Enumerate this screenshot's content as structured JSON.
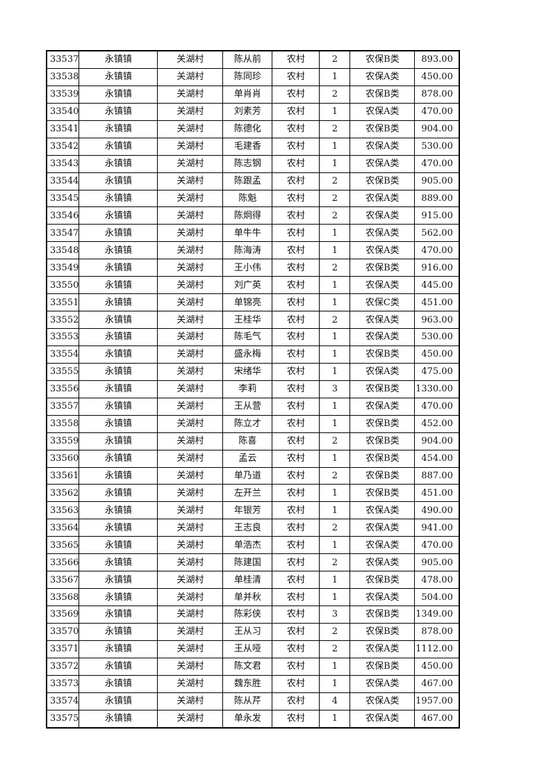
{
  "table": {
    "rows": [
      [
        "33537",
        "永镇镇",
        "关湖村",
        "陈从前",
        "农村",
        "2",
        "农保B类",
        "893.00"
      ],
      [
        "33538",
        "永镇镇",
        "关湖村",
        "陈同珍",
        "农村",
        "1",
        "农保A类",
        "450.00"
      ],
      [
        "33539",
        "永镇镇",
        "关湖村",
        "单肖肖",
        "农村",
        "2",
        "农保B类",
        "878.00"
      ],
      [
        "33540",
        "永镇镇",
        "关湖村",
        "刘素芳",
        "农村",
        "1",
        "农保A类",
        "470.00"
      ],
      [
        "33541",
        "永镇镇",
        "关湖村",
        "陈德化",
        "农村",
        "2",
        "农保B类",
        "904.00"
      ],
      [
        "33542",
        "永镇镇",
        "关湖村",
        "毛建香",
        "农村",
        "1",
        "农保A类",
        "530.00"
      ],
      [
        "33543",
        "永镇镇",
        "关湖村",
        "陈志钢",
        "农村",
        "1",
        "农保A类",
        "470.00"
      ],
      [
        "33544",
        "永镇镇",
        "关湖村",
        "陈跟孟",
        "农村",
        "2",
        "农保B类",
        "905.00"
      ],
      [
        "33545",
        "永镇镇",
        "关湖村",
        "陈魁",
        "农村",
        "2",
        "农保A类",
        "889.00"
      ],
      [
        "33546",
        "永镇镇",
        "关湖村",
        "陈炯得",
        "农村",
        "2",
        "农保A类",
        "915.00"
      ],
      [
        "33547",
        "永镇镇",
        "关湖村",
        "单牛牛",
        "农村",
        "1",
        "农保A类",
        "562.00"
      ],
      [
        "33548",
        "永镇镇",
        "关湖村",
        "陈海涛",
        "农村",
        "1",
        "农保A类",
        "470.00"
      ],
      [
        "33549",
        "永镇镇",
        "关湖村",
        "王小伟",
        "农村",
        "2",
        "农保B类",
        "916.00"
      ],
      [
        "33550",
        "永镇镇",
        "关湖村",
        "刘广英",
        "农村",
        "1",
        "农保A类",
        "445.00"
      ],
      [
        "33551",
        "永镇镇",
        "关湖村",
        "单锦亮",
        "农村",
        "1",
        "农保C类",
        "451.00"
      ],
      [
        "33552",
        "永镇镇",
        "关湖村",
        "王桂华",
        "农村",
        "2",
        "农保A类",
        "963.00"
      ],
      [
        "33553",
        "永镇镇",
        "关湖村",
        "陈毛气",
        "农村",
        "1",
        "农保A类",
        "530.00"
      ],
      [
        "33554",
        "永镇镇",
        "关湖村",
        "盛永梅",
        "农村",
        "1",
        "农保B类",
        "450.00"
      ],
      [
        "33555",
        "永镇镇",
        "关湖村",
        "宋绪华",
        "农村",
        "1",
        "农保A类",
        "475.00"
      ],
      [
        "33556",
        "永镇镇",
        "关湖村",
        "李莉",
        "农村",
        "3",
        "农保B类",
        "1330.00"
      ],
      [
        "33557",
        "永镇镇",
        "关湖村",
        "王从营",
        "农村",
        "1",
        "农保A类",
        "470.00"
      ],
      [
        "33558",
        "永镇镇",
        "关湖村",
        "陈立才",
        "农村",
        "1",
        "农保B类",
        "452.00"
      ],
      [
        "33559",
        "永镇镇",
        "关湖村",
        "陈喜",
        "农村",
        "2",
        "农保B类",
        "904.00"
      ],
      [
        "33560",
        "永镇镇",
        "关湖村",
        "孟云",
        "农村",
        "1",
        "农保B类",
        "454.00"
      ],
      [
        "33561",
        "永镇镇",
        "关湖村",
        "单乃道",
        "农村",
        "2",
        "农保B类",
        "887.00"
      ],
      [
        "33562",
        "永镇镇",
        "关湖村",
        "左开兰",
        "农村",
        "1",
        "农保B类",
        "451.00"
      ],
      [
        "33563",
        "永镇镇",
        "关湖村",
        "年银芳",
        "农村",
        "1",
        "农保A类",
        "490.00"
      ],
      [
        "33564",
        "永镇镇",
        "关湖村",
        "王志良",
        "农村",
        "2",
        "农保A类",
        "941.00"
      ],
      [
        "33565",
        "永镇镇",
        "关湖村",
        "单浩杰",
        "农村",
        "1",
        "农保A类",
        "470.00"
      ],
      [
        "33566",
        "永镇镇",
        "关湖村",
        "陈建国",
        "农村",
        "2",
        "农保A类",
        "905.00"
      ],
      [
        "33567",
        "永镇镇",
        "关湖村",
        "单桂清",
        "农村",
        "1",
        "农保B类",
        "478.00"
      ],
      [
        "33568",
        "永镇镇",
        "关湖村",
        "单并秋",
        "农村",
        "1",
        "农保A类",
        "504.00"
      ],
      [
        "33569",
        "永镇镇",
        "关湖村",
        "陈彩侠",
        "农村",
        "3",
        "农保B类",
        "1349.00"
      ],
      [
        "33570",
        "永镇镇",
        "关湖村",
        "王从习",
        "农村",
        "2",
        "农保B类",
        "878.00"
      ],
      [
        "33571",
        "永镇镇",
        "关湖村",
        "王从哑",
        "农村",
        "2",
        "农保A类",
        "1112.00"
      ],
      [
        "33572",
        "永镇镇",
        "关湖村",
        "陈文君",
        "农村",
        "1",
        "农保B类",
        "450.00"
      ],
      [
        "33573",
        "永镇镇",
        "关湖村",
        "魏东胜",
        "农村",
        "1",
        "农保A类",
        "467.00"
      ],
      [
        "33574",
        "永镇镇",
        "关湖村",
        "陈从芹",
        "农村",
        "4",
        "农保A类",
        "1957.00"
      ],
      [
        "33575",
        "永镇镇",
        "关湖村",
        "单永发",
        "农村",
        "1",
        "农保A类",
        "467.00"
      ]
    ]
  }
}
